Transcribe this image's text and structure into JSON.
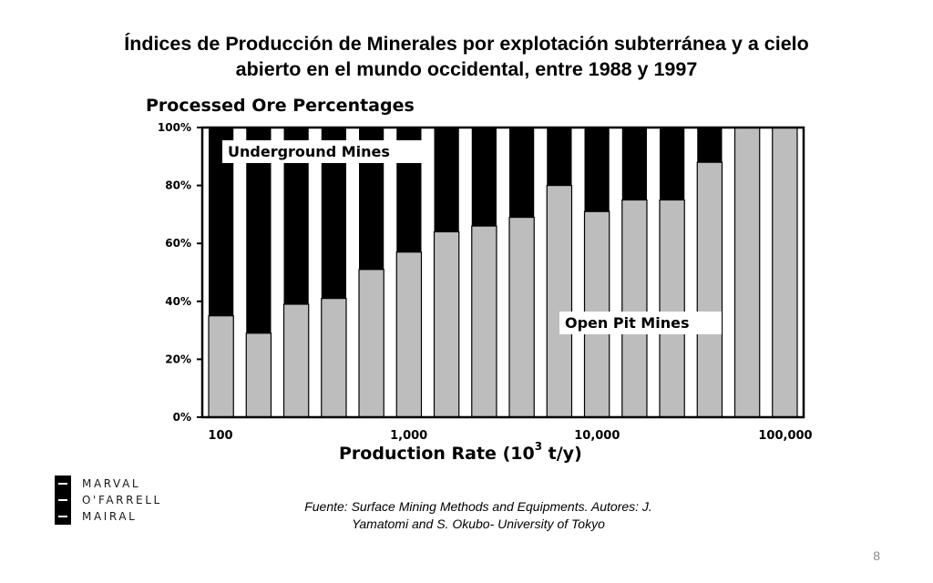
{
  "slide": {
    "title_line1": "Índices de Producción de Minerales por explotación subterránea y a cielo",
    "title_line2": "abierto en el mundo occidental, entre 1988 y 1997",
    "source_line1": "Fuente: Surface Mining Methods and Equipments. Autores: J.",
    "source_line2": "Yamatomi and S. Okubo- University of Tokyo",
    "page_number": "8",
    "logo_lines": [
      "MARVAL",
      "O'FARRELL",
      "MAIRAL"
    ]
  },
  "chart_data": {
    "type": "bar",
    "stacked": true,
    "title": "Processed Ore Percentages",
    "xlabel": "Production Rate (10³ t/y)",
    "xlabel_main": "Production Rate (10",
    "xlabel_exp": "3",
    "xlabel_unit": " t/y)",
    "x_scale": "log",
    "xlim": [
      100,
      100000
    ],
    "xtick_labels": [
      "100",
      "1,000",
      "10,000",
      "100,000"
    ],
    "xticks": [
      100,
      1000,
      10000,
      100000
    ],
    "ytick_labels": [
      "100%",
      "80%",
      "60%",
      "40%",
      "20%",
      "0%"
    ],
    "ylim": [
      0,
      100
    ],
    "categories": [
      "100-150",
      "150-220",
      "220-330",
      "330-500",
      "500-750",
      "750-1000",
      "1000-1500",
      "1500-2200",
      "2200-3300",
      "3300-5000",
      "5000-7500",
      "7500-10000",
      "10000-15000",
      "15000-22000",
      "22000-33000",
      "33000-50000"
    ],
    "series": [
      {
        "name": "Open Pit Mines",
        "color": "#bdbdbd",
        "values": [
          35,
          29,
          39,
          41,
          51,
          57,
          64,
          66,
          69,
          80,
          71,
          75,
          75,
          88,
          100,
          100
        ]
      },
      {
        "name": "Underground Mines",
        "color": "#000000",
        "values": [
          65,
          71,
          61,
          59,
          49,
          43,
          36,
          34,
          31,
          20,
          29,
          25,
          25,
          12,
          0,
          0
        ]
      }
    ],
    "annotations": [
      {
        "text": "Underground Mines",
        "placement": "upper-left"
      },
      {
        "text": "Open Pit Mines",
        "placement": "lower-right"
      }
    ],
    "grid": false,
    "legend": "none"
  }
}
